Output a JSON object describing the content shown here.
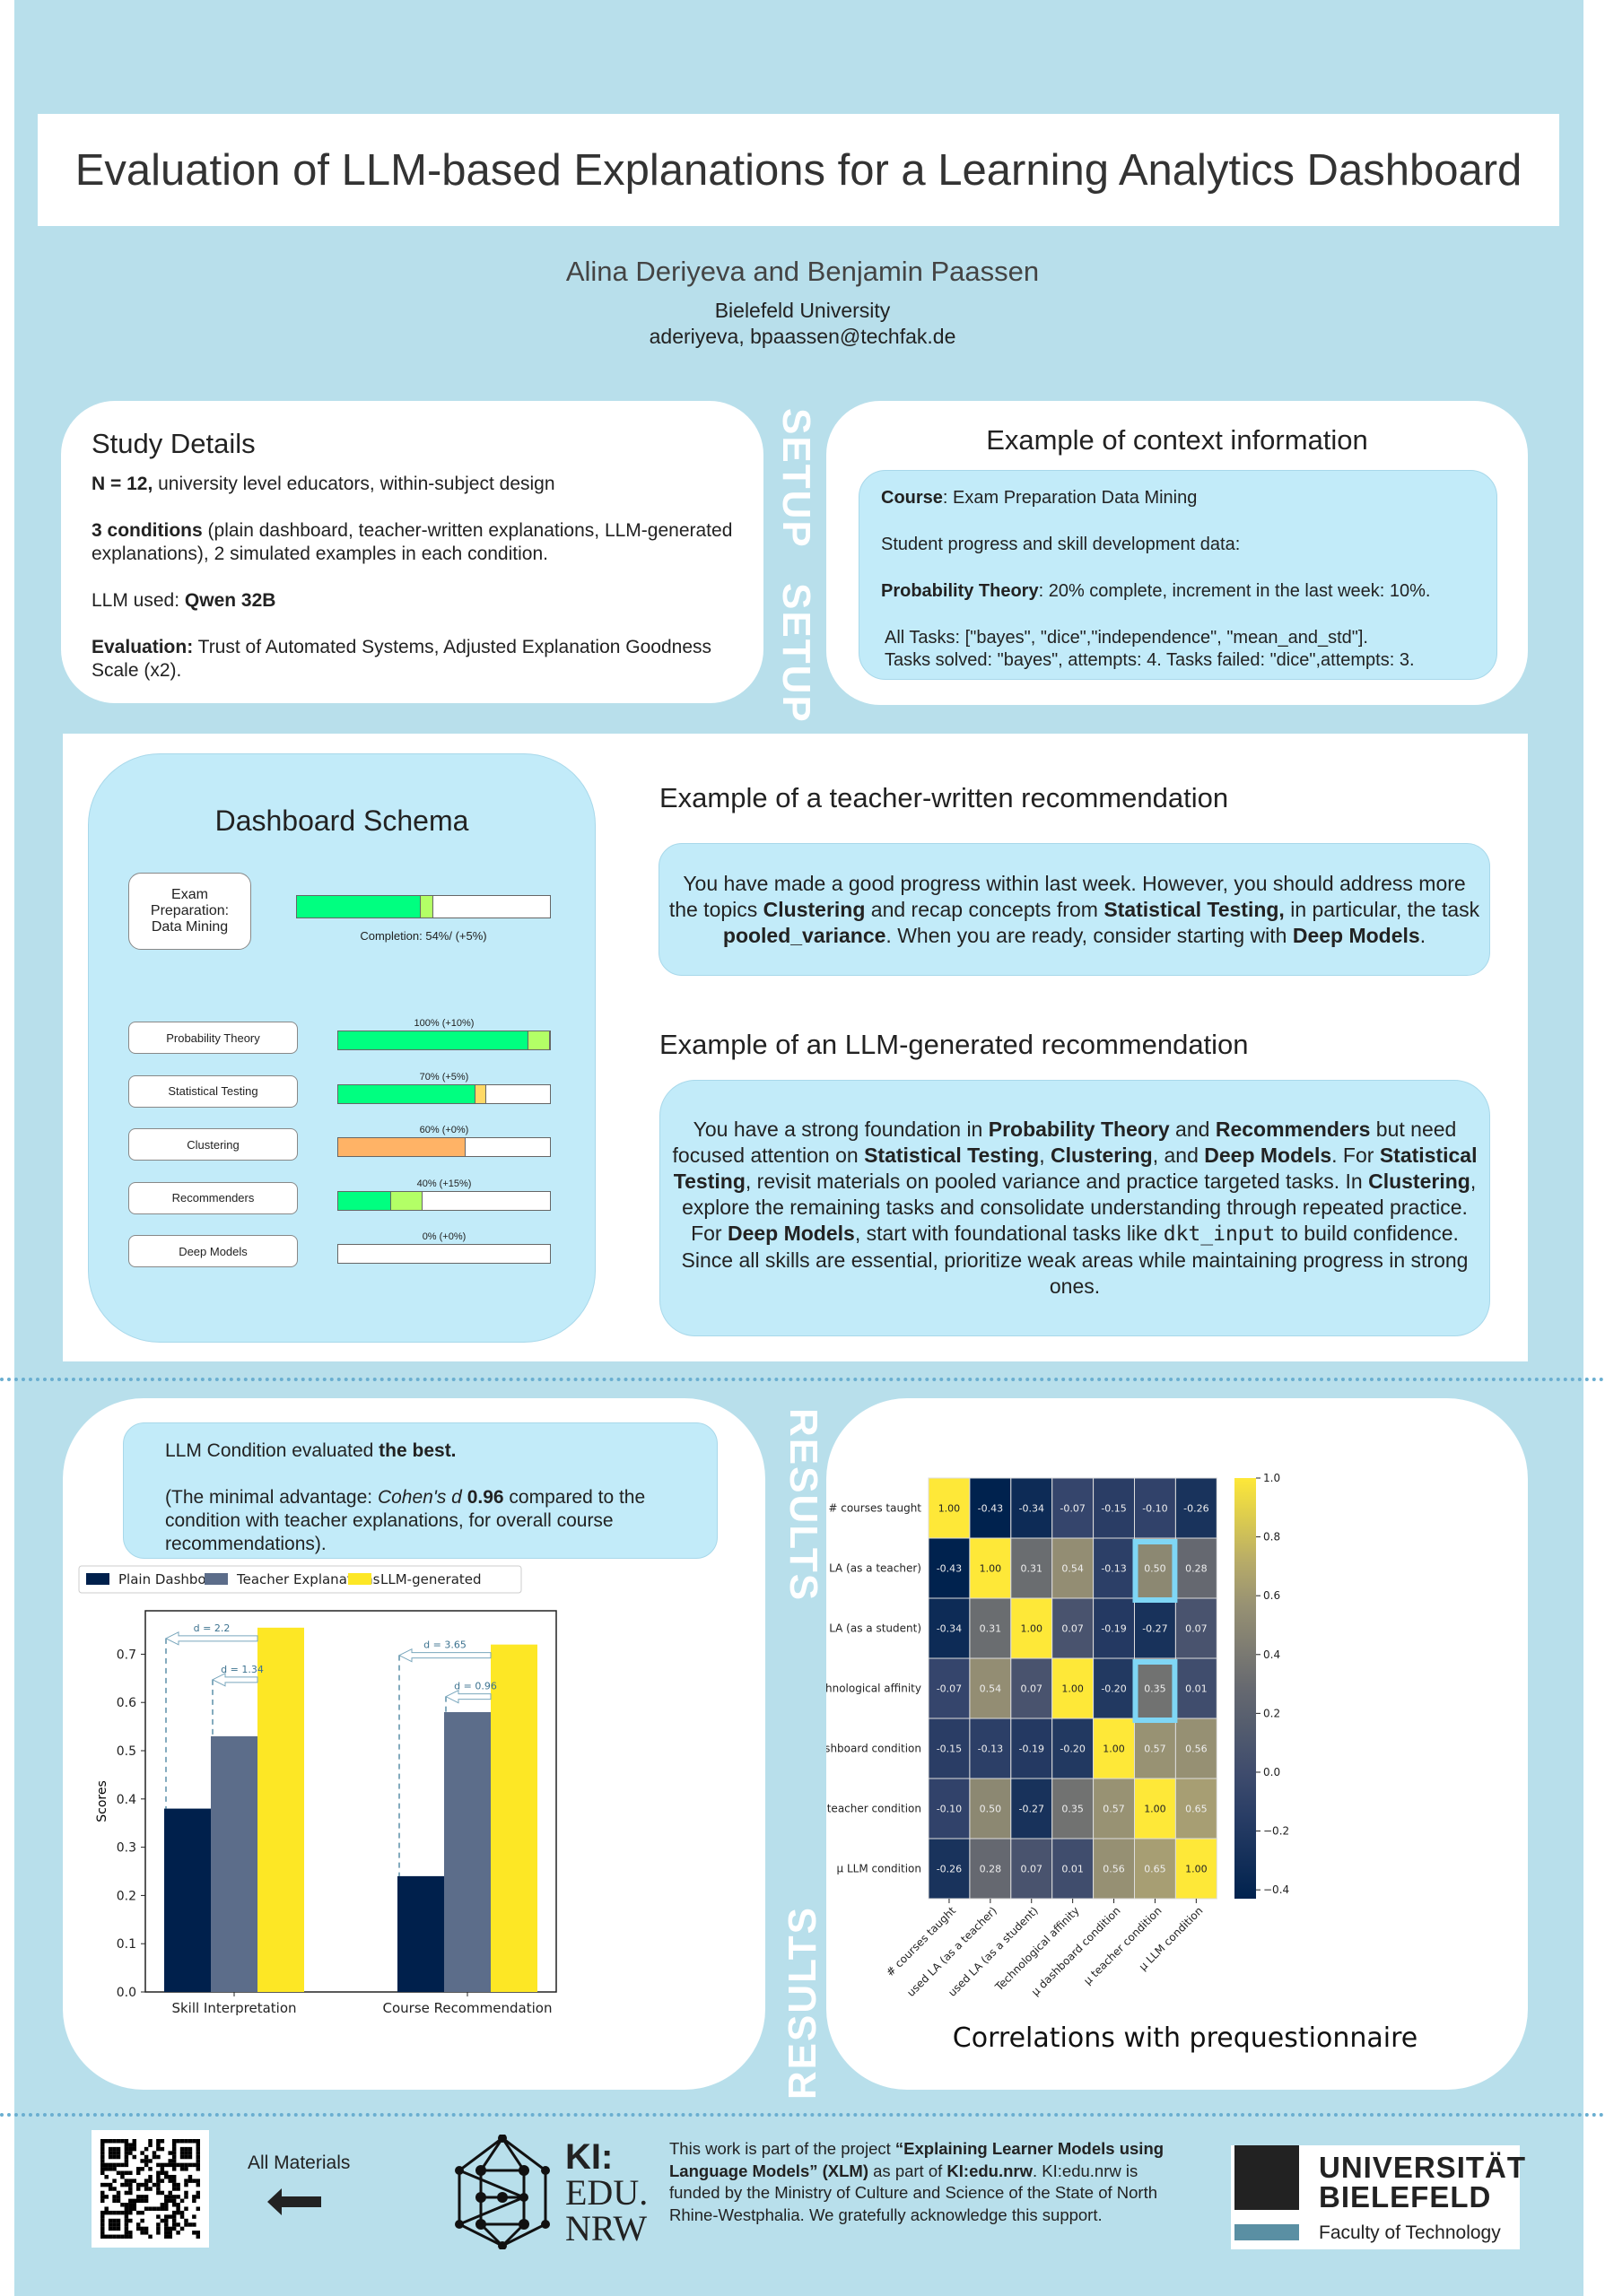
{
  "header": {
    "title": "Evaluation of LLM-based Explanations for a Learning Analytics Dashboard",
    "authors": "Alina Deriyeva and Benjamin Paassen",
    "affiliation": "Bielefeld University",
    "emails": "aderiyeva, bpaassen@techfak.de"
  },
  "section_labels": {
    "setup": "SETUP",
    "results": "RESULTS"
  },
  "study": {
    "title": "Study Details",
    "items": [
      [
        {
          "t": "N = 12,",
          "b": true
        },
        {
          "t": " university level educators, within-subject design"
        }
      ],
      [
        {
          "t": "3 conditions",
          "b": true
        },
        {
          "t": " (plain dashboard, teacher-written explanations, LLM-generated explanations), 2 simulated examples in each condition."
        }
      ],
      [
        {
          "t": "LLM used: "
        },
        {
          "t": "Qwen 32B",
          "b": true
        }
      ],
      [
        {
          "t": "Evaluation:",
          "b": true
        },
        {
          "t": " Trust of Automated Systems,  Adjusted Explanation Goodness Scale (x2)."
        }
      ]
    ]
  },
  "context": {
    "title": "Example of context information",
    "items": [
      [
        {
          "t": "Course",
          "b": true
        },
        {
          "t": ": Exam Preparation Data Mining"
        }
      ],
      [
        {
          "t": "Student progress and skill development data:"
        }
      ],
      [
        {
          "t": "Probability Theory",
          "b": true
        },
        {
          "t": ": 20% complete, increment in the last week: 10%."
        }
      ],
      [
        {
          "t": "All Tasks: [\"bayes\", \"dice\",\"independence\", \"mean_and_std\"]."
        }
      ],
      [
        {
          "t": "Tasks solved: \"bayes\", attempts: 4. Tasks failed: \"dice\",attempts: 3."
        }
      ]
    ]
  },
  "schema": {
    "title": "Dashboard Schema",
    "course": "Exam Preparation: Data Mining",
    "completion": "Completion: 54%/ (+5%)",
    "completion_pct": 54,
    "completion_inc": 5,
    "skills": [
      {
        "name": "Probability Theory",
        "label": "100% (+10%)",
        "base": 90,
        "inc": 10,
        "color": "#00ff80",
        "inc_color": "#b3ff66"
      },
      {
        "name": "Statistical Testing",
        "label": "70% (+5%)",
        "base": 65,
        "inc": 5,
        "color": "#00ff80",
        "inc_color": "#ffd966"
      },
      {
        "name": "Clustering",
        "label": "60% (+0%)",
        "base": 60,
        "inc": 0,
        "color": "#ffb366",
        "inc_color": "#ffd966"
      },
      {
        "name": "Recommenders",
        "label": "40% (+15%)",
        "base": 25,
        "inc": 15,
        "color": "#00ff80",
        "inc_color": "#b3ff66"
      },
      {
        "name": "Deep Models",
        "label": "0% (+0%)",
        "base": 0,
        "inc": 0,
        "color": "#00ff80",
        "inc_color": "#b3ff66"
      }
    ]
  },
  "teacher": {
    "title": "Example of a teacher-written recommendation",
    "text": [
      {
        "t": "You have made a good progress within last week. However, you should address more the topics "
      },
      {
        "t": "Clustering",
        "b": true
      },
      {
        "t": " and recap concepts from "
      },
      {
        "t": "Statistical Testing,",
        "b": true
      },
      {
        "t": " in particular, the task "
      },
      {
        "t": "pooled_variance",
        "b": true
      },
      {
        "t": ". When you are ready, consider starting with "
      },
      {
        "t": "Deep Models",
        "b": true
      },
      {
        "t": "."
      }
    ]
  },
  "llm": {
    "title": "Example of an LLM-generated recommendation",
    "text": [
      {
        "t": "You have a strong foundation in "
      },
      {
        "t": "Probability Theory",
        "b": true
      },
      {
        "t": " and "
      },
      {
        "t": "Recommenders",
        "b": true
      },
      {
        "t": " but need focused attention on "
      },
      {
        "t": "Statistical Testing",
        "b": true
      },
      {
        "t": ", "
      },
      {
        "t": "Clustering",
        "b": true
      },
      {
        "t": ", and "
      },
      {
        "t": "Deep Models",
        "b": true
      },
      {
        "t": ". For "
      },
      {
        "t": "Statistical Testing",
        "b": true
      },
      {
        "t": ", revisit materials on pooled variance and practice targeted tasks. In "
      },
      {
        "t": "Clustering",
        "b": true
      },
      {
        "t": ", explore the remaining tasks and consolidate understanding through repeated practice. For "
      },
      {
        "t": "Deep Models",
        "b": true
      },
      {
        "t": ", start with foundational tasks like "
      },
      {
        "t": "dkt_input",
        "m": true
      },
      {
        "t": " to build confidence. Since all skills are essential, prioritize weak areas while maintaining progress in strong ones."
      }
    ]
  },
  "results_box": {
    "text": [
      {
        "t": "LLM Condition evaluated "
      },
      {
        "t": "the best.",
        "b": true
      }
    ],
    "text2": [
      {
        "t": "(The minimal advantage: "
      },
      {
        "t": "Cohen's d",
        "i": true
      },
      {
        "t": " "
      },
      {
        "t": "0.96",
        "b": true
      },
      {
        "t": " compared to the condition with teacher explanations, for overall course recommendations)."
      }
    ]
  },
  "chart_data": [
    {
      "type": "bar",
      "categories": [
        "Skill Interpretation",
        "Course Recommendation"
      ],
      "series": [
        {
          "name": "Plain Dashboard",
          "color": "#00204c",
          "values": [
            0.38,
            0.24
          ]
        },
        {
          "name": "Teacher Explanations",
          "color": "#5c6d8a",
          "values": [
            0.53,
            0.58
          ]
        },
        {
          "name": "LLM-generated",
          "color": "#fde725",
          "values": [
            0.755,
            0.72
          ]
        }
      ],
      "ylabel": "Scores",
      "ylim": [
        0,
        0.79
      ],
      "yticks": [
        "0.0",
        "0.1",
        "0.2",
        "0.3",
        "0.4",
        "0.5",
        "0.6",
        "0.7"
      ],
      "legend": "top",
      "annotations": [
        {
          "cat": 0,
          "from": 2,
          "to": 0,
          "label": "d = 2.2"
        },
        {
          "cat": 0,
          "from": 2,
          "to": 1,
          "label": "d = 1.34"
        },
        {
          "cat": 1,
          "from": 2,
          "to": 0,
          "label": "d = 3.65"
        },
        {
          "cat": 1,
          "from": 2,
          "to": 1,
          "label": "d = 0.96"
        }
      ]
    },
    {
      "type": "heatmap",
      "title": "Correlations with prequestionnaire",
      "labels": [
        "# courses taught",
        "used LA (as a teacher)",
        "used LA (as a student)",
        "Technological affinity",
        "μ dashboard condition",
        "μ teacher condition",
        "μ LLM condition"
      ],
      "values": [
        [
          1.0,
          -0.43,
          -0.34,
          -0.07,
          -0.15,
          -0.1,
          -0.26
        ],
        [
          -0.43,
          1.0,
          0.31,
          0.54,
          -0.13,
          0.5,
          0.28
        ],
        [
          -0.34,
          0.31,
          1.0,
          0.07,
          -0.19,
          -0.27,
          0.07
        ],
        [
          -0.07,
          0.54,
          0.07,
          1.0,
          -0.2,
          0.35,
          0.01
        ],
        [
          -0.15,
          -0.13,
          -0.19,
          -0.2,
          1.0,
          0.57,
          0.56
        ],
        [
          -0.1,
          0.5,
          -0.27,
          0.35,
          0.57,
          1.0,
          0.65
        ],
        [
          -0.26,
          0.28,
          0.07,
          0.01,
          0.56,
          0.65,
          1.0
        ]
      ],
      "highlighted": [
        [
          1,
          5
        ],
        [
          3,
          5
        ]
      ],
      "colorbar_range": [
        -0.43,
        1.0
      ],
      "colorbar_ticks": [
        "1.0",
        "0.8",
        "0.6",
        "0.4",
        "0.2",
        "0.0",
        "−0.2",
        "−0.4"
      ],
      "colormap": "cividis"
    }
  ],
  "footer": {
    "materials": "All Materials",
    "ki_logo": [
      "KI:",
      "EDU.",
      "NRW"
    ],
    "text": [
      {
        "t": "This work is part of the project "
      },
      {
        "t": "“Explaining Learner Models using Language Models” (XLM)",
        "b": true
      },
      {
        "t": " as part of "
      },
      {
        "t": "KI:edu.nrw",
        "b": true
      },
      {
        "t": ". KI:edu.nrw is funded by the Ministry of Culture and Science of the State of North Rhine-Westphalia. We gratefully acknowledge this support."
      }
    ],
    "uni": [
      "UNIVERSITÄT",
      "BIELEFELD"
    ],
    "faculty": "Faculty of Technology"
  },
  "colors": {
    "background": "#b8dfeb",
    "light_box": "#c2ebf9",
    "highlight": "#7fd6f5"
  }
}
